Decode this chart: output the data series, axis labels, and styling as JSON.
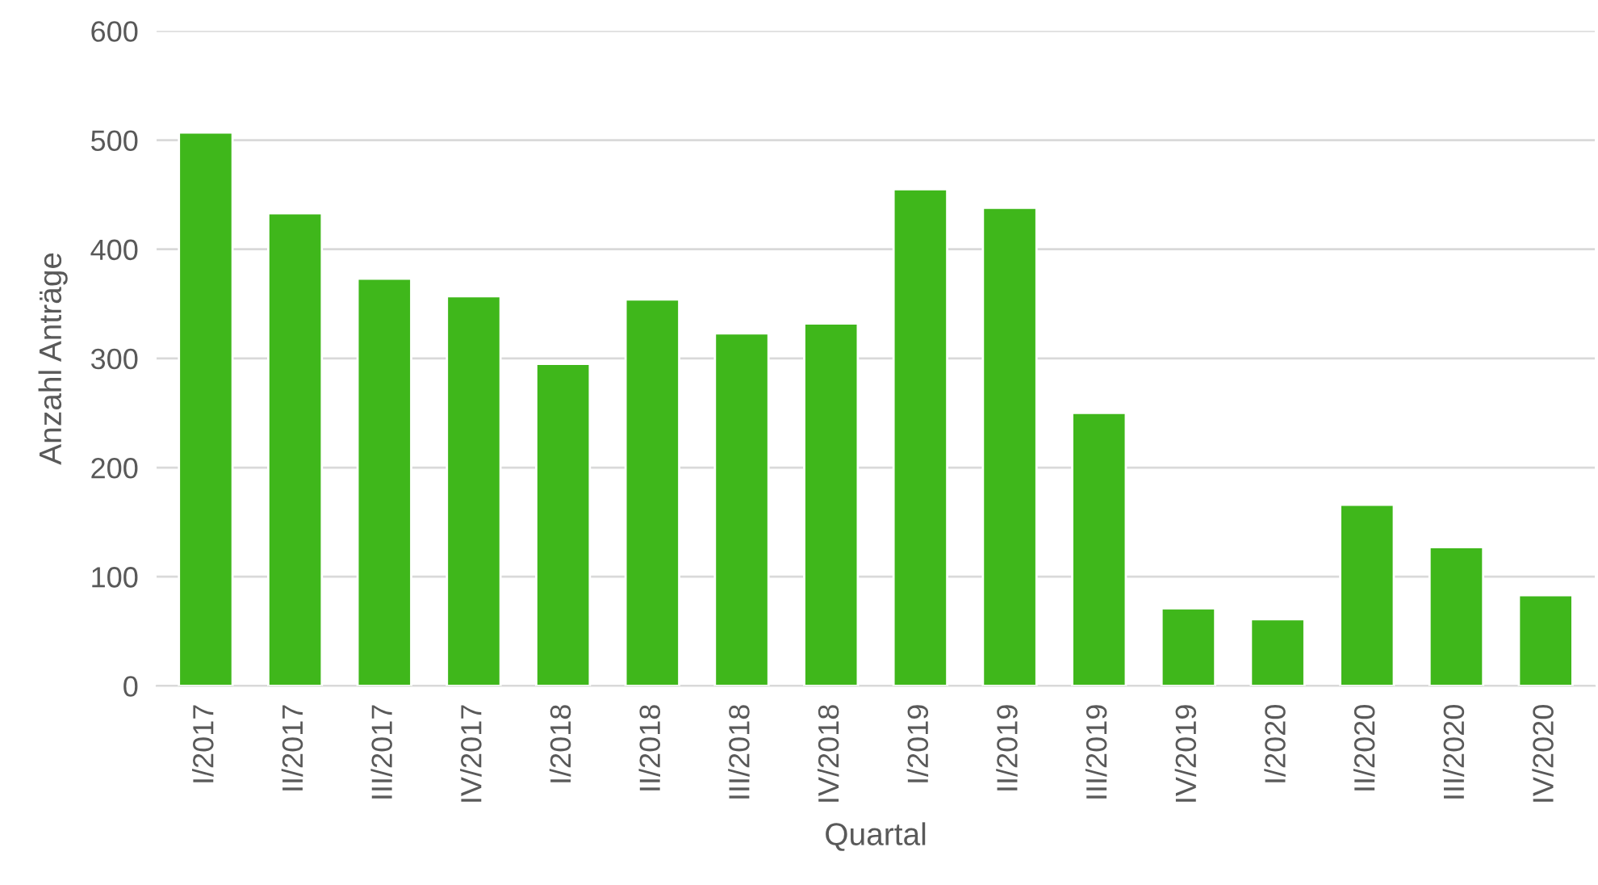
{
  "chart_data": {
    "type": "bar",
    "xlabel": "Quartal",
    "ylabel": "Anzahl Anträge",
    "categories": [
      "I/2017",
      "II/2017",
      "III/2017",
      "IV/2017",
      "I/2018",
      "II/2018",
      "III/2018",
      "IV/2018",
      "I/2019",
      "II/2019",
      "III/2019",
      "IV/2019",
      "I/2020",
      "II/2020",
      "III/2020",
      "IV/2020"
    ],
    "values": [
      507,
      433,
      373,
      357,
      295,
      354,
      323,
      332,
      455,
      438,
      250,
      71,
      61,
      166,
      127,
      83
    ],
    "color": "#3fb71b",
    "ylim": [
      0,
      600
    ],
    "yticks": [
      0,
      100,
      200,
      300,
      400,
      500,
      600
    ],
    "grid": "y",
    "legend": false
  }
}
